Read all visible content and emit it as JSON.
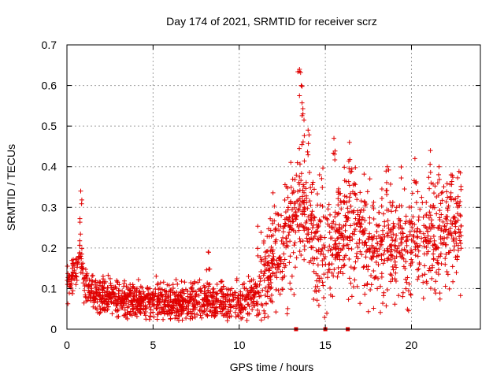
{
  "chart_data": {
    "type": "scatter",
    "title": "Day 174 of 2021, SRMTID for receiver scrz",
    "xlabel": "GPS time / hours",
    "ylabel": "SRMTID / TECUs",
    "xlim": [
      0,
      24
    ],
    "ylim": [
      0,
      0.7
    ],
    "x_ticks": [
      0,
      5,
      10,
      15,
      20
    ],
    "x_tick_labels": [
      "0",
      "5",
      "10",
      "15",
      "20"
    ],
    "y_ticks": [
      0,
      0.1,
      0.2,
      0.3,
      0.4,
      0.5,
      0.6,
      0.7
    ],
    "y_tick_labels": [
      "0",
      "0.1",
      "0.2",
      "0.3",
      "0.4",
      "0.5",
      "0.6",
      "0.7"
    ],
    "grid": true,
    "marker": "plus",
    "series": [
      {
        "name": "SRMTID",
        "color": "#e00000",
        "x_range": [
          0.0,
          22.9
        ],
        "trend": [
          [
            0.0,
            0.12
          ],
          [
            0.3,
            0.14
          ],
          [
            0.6,
            0.15
          ],
          [
            0.8,
            0.2
          ],
          [
            1.0,
            0.11
          ],
          [
            1.5,
            0.09
          ],
          [
            2.0,
            0.08
          ],
          [
            3.0,
            0.075
          ],
          [
            4.0,
            0.07
          ],
          [
            5.0,
            0.07
          ],
          [
            6.0,
            0.065
          ],
          [
            7.0,
            0.07
          ],
          [
            8.0,
            0.075
          ],
          [
            9.0,
            0.065
          ],
          [
            10.0,
            0.07
          ],
          [
            10.8,
            0.08
          ],
          [
            11.5,
            0.12
          ],
          [
            12.0,
            0.16
          ],
          [
            12.5,
            0.2
          ],
          [
            13.0,
            0.24
          ],
          [
            13.5,
            0.3
          ],
          [
            14.0,
            0.26
          ],
          [
            14.5,
            0.22
          ],
          [
            15.0,
            0.19
          ],
          [
            15.5,
            0.22
          ],
          [
            16.0,
            0.24
          ],
          [
            16.5,
            0.25
          ],
          [
            17.0,
            0.22
          ],
          [
            17.5,
            0.2
          ],
          [
            18.0,
            0.19
          ],
          [
            19.0,
            0.21
          ],
          [
            20.0,
            0.2
          ],
          [
            21.0,
            0.22
          ],
          [
            22.0,
            0.24
          ],
          [
            22.9,
            0.25
          ]
        ],
        "peaks": [
          {
            "x": 0.8,
            "y": 0.34
          },
          {
            "x": 8.2,
            "y": 0.19
          },
          {
            "x": 13.5,
            "y": 0.64
          },
          {
            "x": 13.6,
            "y": 0.6
          },
          {
            "x": 13.7,
            "y": 0.53
          },
          {
            "x": 14.0,
            "y": 0.49
          },
          {
            "x": 15.5,
            "y": 0.47
          },
          {
            "x": 16.4,
            "y": 0.46
          },
          {
            "x": 18.6,
            "y": 0.4
          },
          {
            "x": 20.2,
            "y": 0.42
          },
          {
            "x": 21.1,
            "y": 0.44
          },
          {
            "x": 21.6,
            "y": 0.4
          },
          {
            "x": 22.3,
            "y": 0.38
          }
        ]
      },
      {
        "name": "zero markers",
        "color": "#e00000",
        "marker": "square",
        "x": [
          13.3,
          15.0,
          16.3
        ],
        "y": [
          0,
          0,
          0
        ]
      }
    ]
  }
}
